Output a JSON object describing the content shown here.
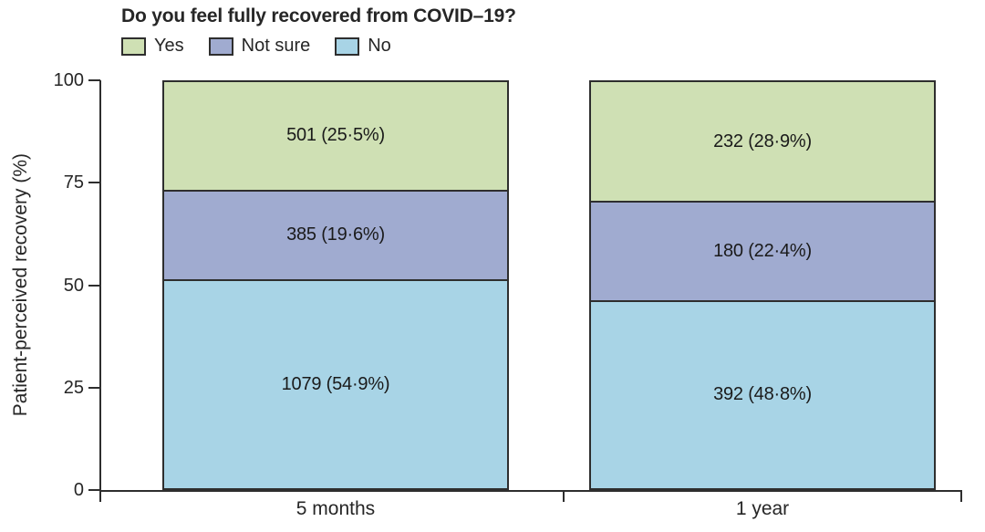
{
  "chart_data": {
    "type": "bar",
    "subtype": "stacked-percentage",
    "title": "Do you feel fully recovered from COVID–19?",
    "ylabel": "Patient-perceived recovery (%)",
    "xlabel": "",
    "categories": [
      "5 months",
      "1 year"
    ],
    "series": [
      {
        "name": "Yes",
        "color": "#cfe0b4",
        "values_pct": [
          25.5,
          28.9
        ],
        "counts": [
          501,
          232
        ],
        "labels": [
          "501 (25·5%)",
          "232 (28·9%)"
        ]
      },
      {
        "name": "Not sure",
        "color": "#a0abd0",
        "values_pct": [
          19.6,
          22.4
        ],
        "counts": [
          385,
          180
        ],
        "labels": [
          "385 (19·6%)",
          "180 (22·4%)"
        ]
      },
      {
        "name": "No",
        "color": "#a8d4e6",
        "values_pct": [
          54.9,
          48.8
        ],
        "counts": [
          1079,
          392
        ],
        "labels": [
          "1079 (54·9%)",
          "392 (48·8%)"
        ]
      }
    ],
    "yticks": [
      0,
      25,
      50,
      75,
      100
    ],
    "ylim": [
      0,
      100
    ],
    "grid": false,
    "legend_position": "top-left",
    "axis_color": "#2e2e2e",
    "stack_order_top_to_bottom": [
      "Yes",
      "Not sure",
      "No"
    ]
  }
}
